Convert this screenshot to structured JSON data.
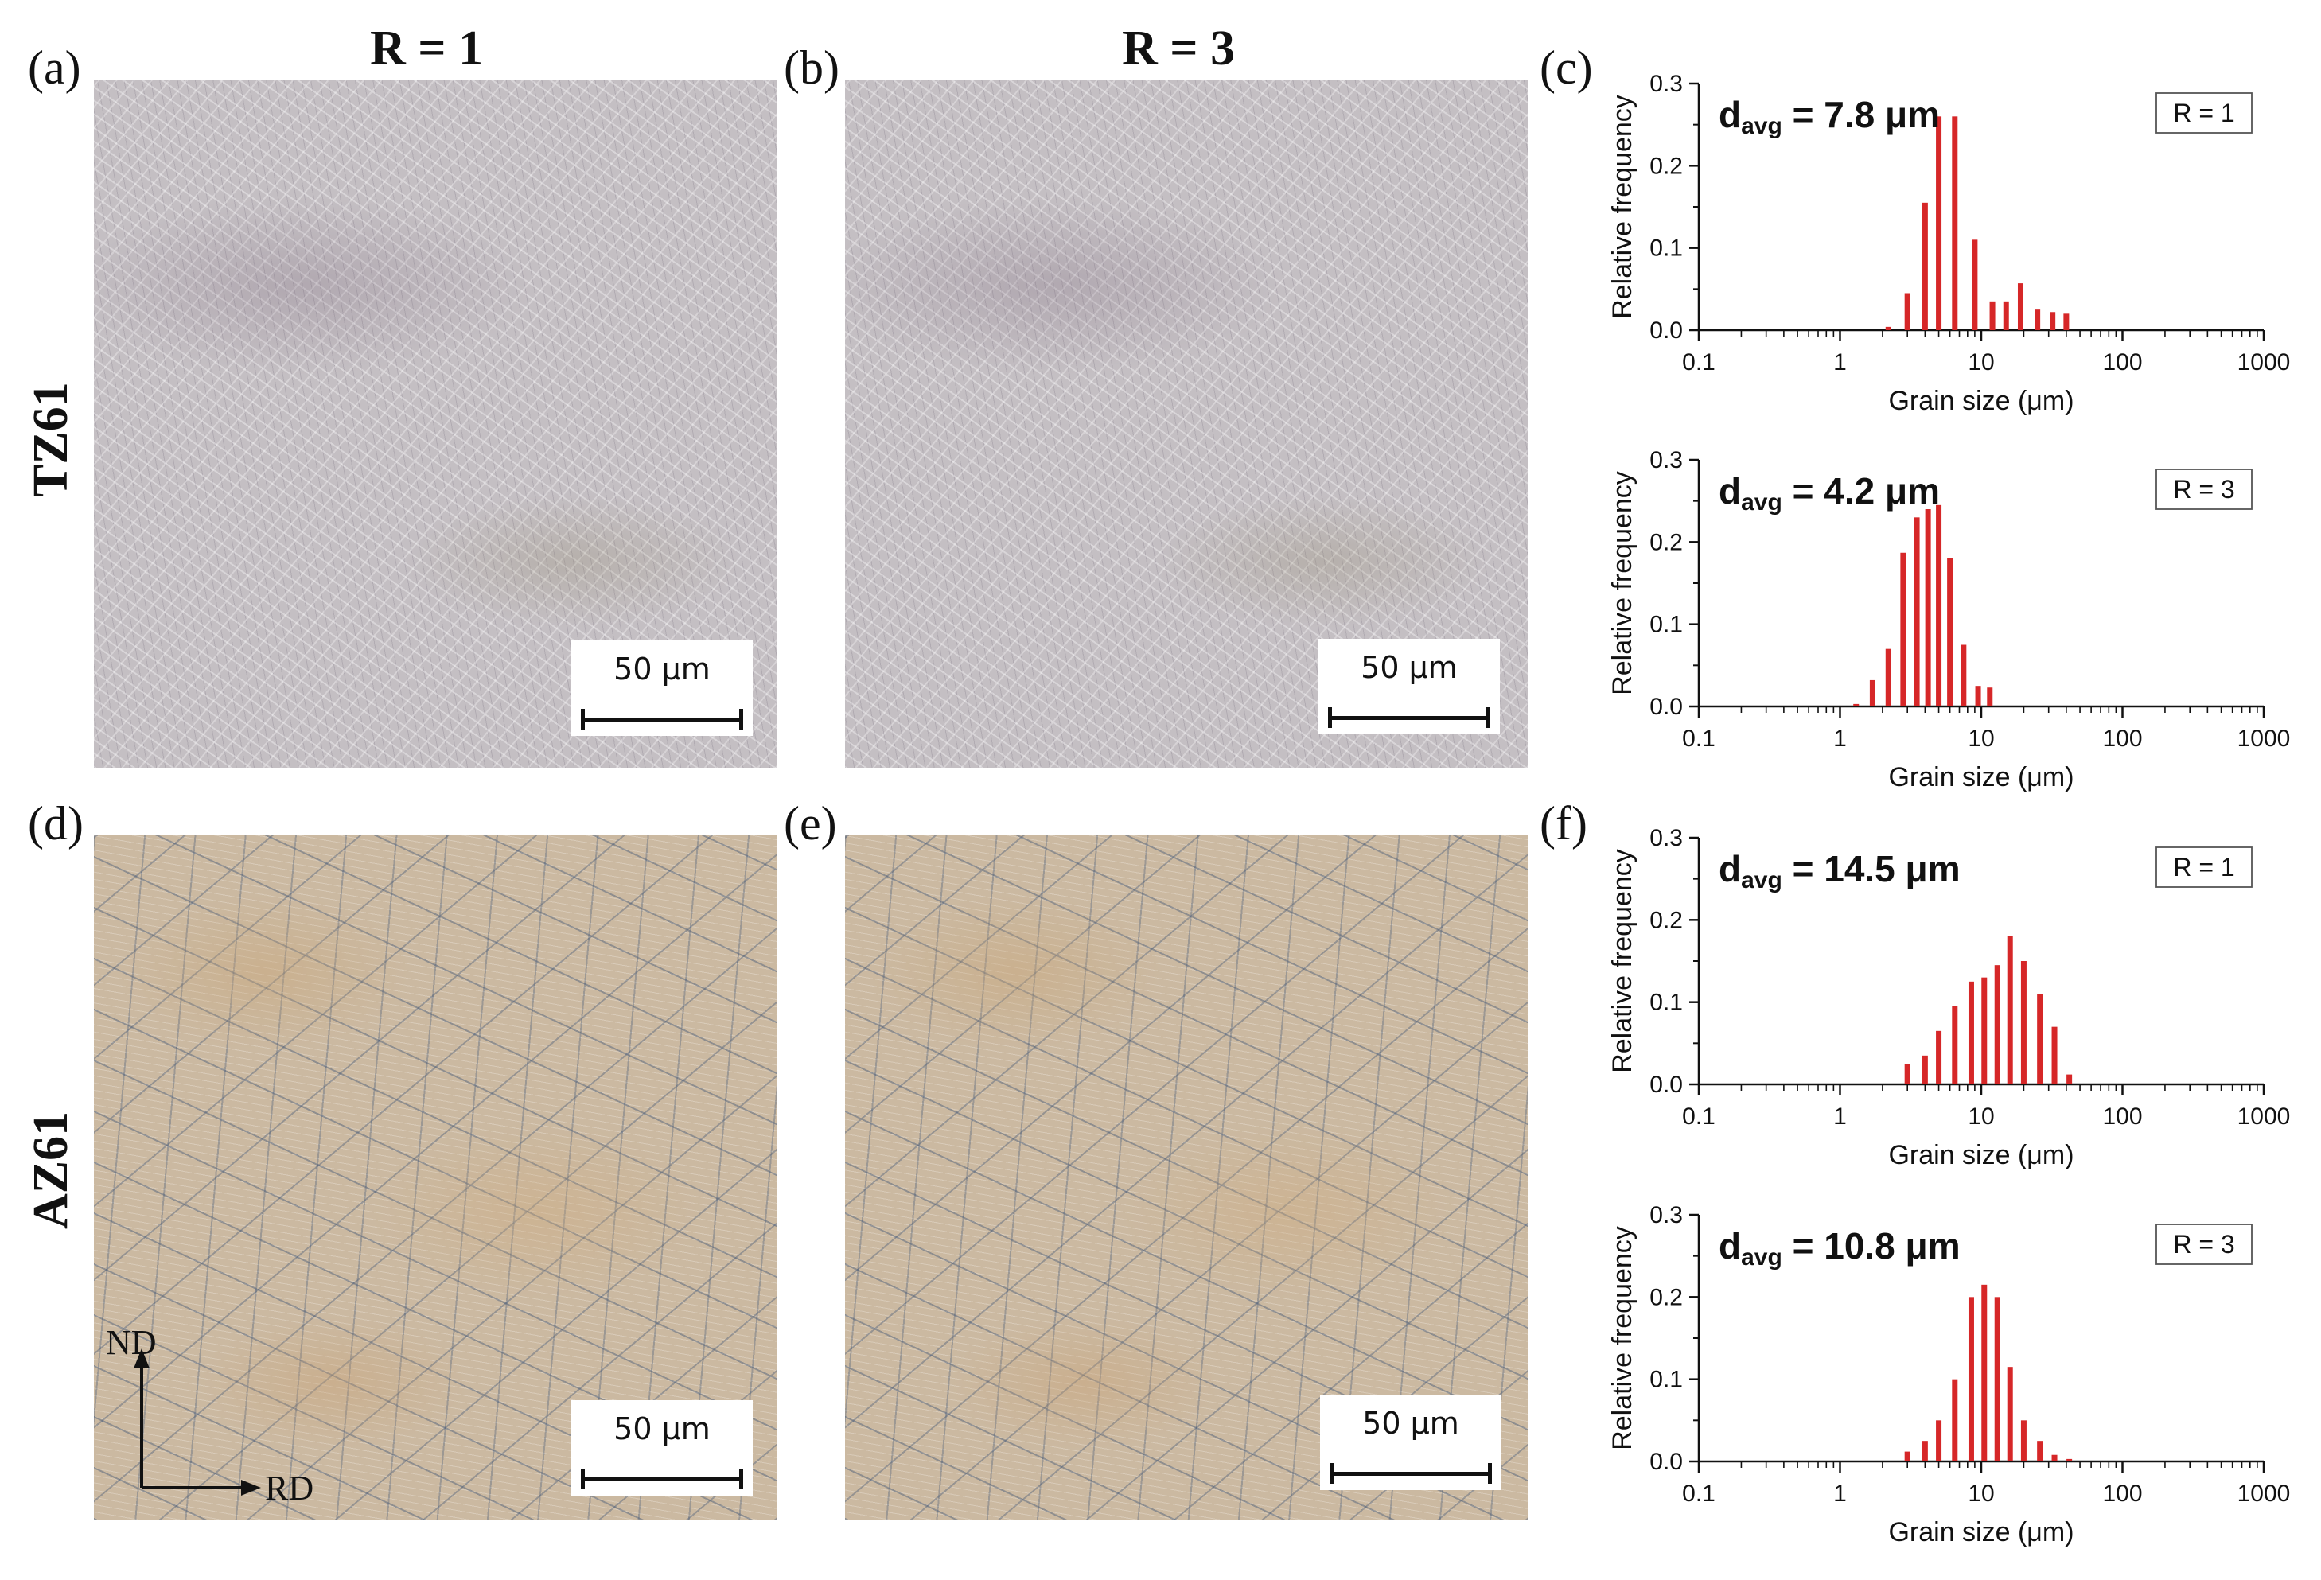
{
  "columns": {
    "r1": "R = 1",
    "r3": "R = 3"
  },
  "rows": {
    "top": "TZ61",
    "bottom": "AZ61"
  },
  "panels": {
    "a": "(a)",
    "b": "(b)",
    "c": "(c)",
    "d": "(d)",
    "e": "(e)",
    "f": "(f)"
  },
  "scale_bar": "50 μm",
  "axes_labels": {
    "nd": "ND",
    "rd": "RD"
  },
  "colors": {
    "bar": "#d62728",
    "axis": "#111111"
  },
  "chart_data": [
    {
      "type": "bar",
      "panel": "c",
      "alloy": "TZ61",
      "legend": "R = 1",
      "annotation": {
        "prefix": "d",
        "sub": "avg",
        "suffix": " = 7.8 μm"
      },
      "xlabel": "Grain size (μm)",
      "ylabel": "Relative frequency",
      "xscale": "log",
      "xlim": [
        0.1,
        1000
      ],
      "ylim": [
        0,
        0.3
      ],
      "xticks": [
        "0.1",
        "1",
        "10",
        "100",
        "1000"
      ],
      "yticks": [
        "0.0",
        "0.1",
        "0.2",
        "0.3"
      ],
      "x": [
        2.2,
        3,
        4,
        5,
        6.5,
        9,
        12,
        15,
        19,
        25,
        32,
        40
      ],
      "values": [
        0.004,
        0.045,
        0.155,
        0.26,
        0.26,
        0.11,
        0.035,
        0.035,
        0.057,
        0.025,
        0.022,
        0.02
      ]
    },
    {
      "type": "bar",
      "panel": "c",
      "alloy": "TZ61",
      "legend": "R = 3",
      "annotation": {
        "prefix": "d",
        "sub": "avg",
        "suffix": " = 4.2 μm"
      },
      "xlabel": "Grain size (μm)",
      "ylabel": "Relative frequency",
      "xscale": "log",
      "xlim": [
        0.1,
        1000
      ],
      "ylim": [
        0,
        0.3
      ],
      "xticks": [
        "0.1",
        "1",
        "10",
        "100",
        "1000"
      ],
      "yticks": [
        "0.0",
        "0.1",
        "0.2",
        "0.3"
      ],
      "x": [
        1.3,
        1.7,
        2.2,
        2.8,
        3.5,
        4.2,
        5,
        6,
        7.5,
        9.5,
        11.5
      ],
      "values": [
        0.003,
        0.032,
        0.07,
        0.187,
        0.23,
        0.24,
        0.245,
        0.18,
        0.075,
        0.025,
        0.023
      ]
    },
    {
      "type": "bar",
      "panel": "f",
      "alloy": "AZ61",
      "legend": "R = 1",
      "annotation": {
        "prefix": "d",
        "sub": "avg",
        "suffix": " = 14.5 μm"
      },
      "xlabel": "Grain size (μm)",
      "ylabel": "Relative frequency",
      "xscale": "log",
      "xlim": [
        0.1,
        1000
      ],
      "ylim": [
        0,
        0.3
      ],
      "xticks": [
        "0.1",
        "1",
        "10",
        "100",
        "1000"
      ],
      "yticks": [
        "0.0",
        "0.1",
        "0.2",
        "0.3"
      ],
      "x": [
        3,
        4,
        5,
        6.5,
        8.5,
        10.5,
        13,
        16,
        20,
        26,
        33,
        42
      ],
      "values": [
        0.025,
        0.035,
        0.065,
        0.095,
        0.125,
        0.13,
        0.145,
        0.18,
        0.15,
        0.11,
        0.07,
        0.012
      ]
    },
    {
      "type": "bar",
      "panel": "f",
      "alloy": "AZ61",
      "legend": "R = 3",
      "annotation": {
        "prefix": "d",
        "sub": "avg",
        "suffix": " = 10.8 μm"
      },
      "xlabel": "Grain size (μm)",
      "ylabel": "Relative frequency",
      "xscale": "log",
      "xlim": [
        0.1,
        1000
      ],
      "ylim": [
        0,
        0.3
      ],
      "xticks": [
        "0.1",
        "1",
        "10",
        "100",
        "1000"
      ],
      "yticks": [
        "0.0",
        "0.1",
        "0.2",
        "0.3"
      ],
      "x": [
        3,
        4,
        5,
        6.5,
        8.5,
        10.5,
        13,
        16,
        20,
        26,
        33,
        42
      ],
      "values": [
        0.012,
        0.025,
        0.05,
        0.1,
        0.2,
        0.215,
        0.2,
        0.115,
        0.05,
        0.025,
        0.008,
        0.003
      ]
    }
  ]
}
